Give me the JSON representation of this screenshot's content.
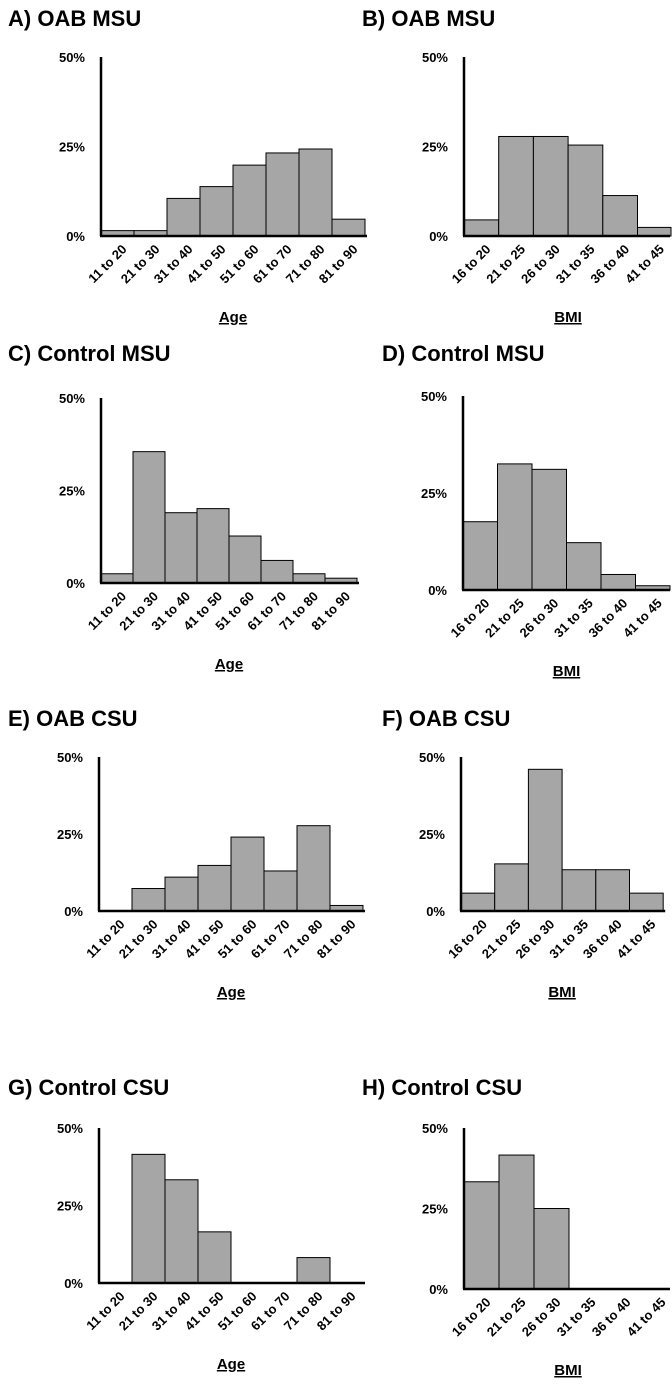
{
  "chart_data": [
    {
      "type": "bar",
      "title": "A) OAB MSU",
      "xlabel": "Age",
      "categories": [
        "11 to 20",
        "21 to 30",
        "31 to 40",
        "41 to 50",
        "51 to 60",
        "61 to 70",
        "71 to 80",
        "81 to 90"
      ],
      "values": [
        1.5,
        1.5,
        10.5,
        13.8,
        19.8,
        23.2,
        24.3,
        4.7
      ],
      "yticks": [
        "0%",
        "25%",
        "50%"
      ],
      "ylim": [
        0,
        50
      ]
    },
    {
      "type": "bar",
      "title": "B) OAB MSU",
      "xlabel": "BMI",
      "categories": [
        "16 to 20",
        "21 to 25",
        "26 to 30",
        "31 to 35",
        "36 to 40",
        "41 to 45"
      ],
      "values": [
        4.5,
        27.8,
        27.8,
        25.4,
        11.3,
        2.4
      ],
      "yticks": [
        "0%",
        "25%",
        "50%"
      ],
      "ylim": [
        0,
        50
      ]
    },
    {
      "type": "bar",
      "title": "C) Control MSU",
      "xlabel": "Age",
      "categories": [
        "11 to 20",
        "21 to 30",
        "31 to 40",
        "41 to 50",
        "51 to 60",
        "61 to 70",
        "71 to 80",
        "81 to 90"
      ],
      "values": [
        2.5,
        35.5,
        19.0,
        20.1,
        12.7,
        6.1,
        2.5,
        1.3
      ],
      "yticks": [
        "0%",
        "25%",
        "50%"
      ],
      "ylim": [
        0,
        50
      ]
    },
    {
      "type": "bar",
      "title": "D) Control MSU",
      "xlabel": "BMI",
      "categories": [
        "16 to 20",
        "21 to 25",
        "26 to 30",
        "31 to 35",
        "36 to 40",
        "41 to 45"
      ],
      "values": [
        17.6,
        32.5,
        31.1,
        12.2,
        4.0,
        1.1
      ],
      "yticks": [
        "0%",
        "25%",
        "50%"
      ],
      "ylim": [
        0,
        50
      ]
    },
    {
      "type": "bar",
      "title": "E) OAB CSU",
      "xlabel": "Age",
      "categories": [
        "11 to 20",
        "21 to 30",
        "31 to 40",
        "41 to 50",
        "51 to 60",
        "61 to 70",
        "71 to 80",
        "81 to 90"
      ],
      "values": [
        0,
        7.3,
        11.0,
        14.8,
        24.0,
        13.0,
        27.7,
        1.8
      ],
      "yticks": [
        "0%",
        "25%",
        "50%"
      ],
      "ylim": [
        0,
        50
      ]
    },
    {
      "type": "bar",
      "title": "F) OAB CSU",
      "xlabel": "BMI",
      "categories": [
        "16 to 20",
        "21 to 25",
        "26 to 30",
        "31 to 35",
        "36 to 40",
        "41 to 45"
      ],
      "values": [
        5.8,
        15.3,
        46.0,
        13.4,
        13.4,
        5.8
      ],
      "yticks": [
        "0%",
        "25%",
        "50%"
      ],
      "ylim": [
        0,
        50
      ]
    },
    {
      "type": "bar",
      "title": "G) Control CSU",
      "xlabel": "Age",
      "categories": [
        "11 to 20",
        "21 to 30",
        "31 to 40",
        "41 to 50",
        "51 to 60",
        "61 to 70",
        "71 to 80",
        "81 to 90"
      ],
      "values": [
        0,
        41.5,
        33.3,
        16.5,
        0,
        0,
        8.2,
        0
      ],
      "yticks": [
        "0%",
        "25%",
        "50%"
      ],
      "ylim": [
        0,
        50
      ]
    },
    {
      "type": "bar",
      "title": "H) Control CSU",
      "xlabel": "BMI",
      "categories": [
        "16 to 20",
        "21 to 25",
        "26 to 30",
        "31 to 35",
        "36 to 40",
        "41 to 45"
      ],
      "values": [
        33.3,
        41.6,
        25.0,
        0,
        0,
        0
      ],
      "yticks": [
        "0%",
        "25%",
        "50%"
      ],
      "ylim": [
        0,
        50
      ]
    }
  ],
  "colors": {
    "bar_fill": "#a6a6a6",
    "bar_stroke": "#000000",
    "axis": "#000000"
  }
}
